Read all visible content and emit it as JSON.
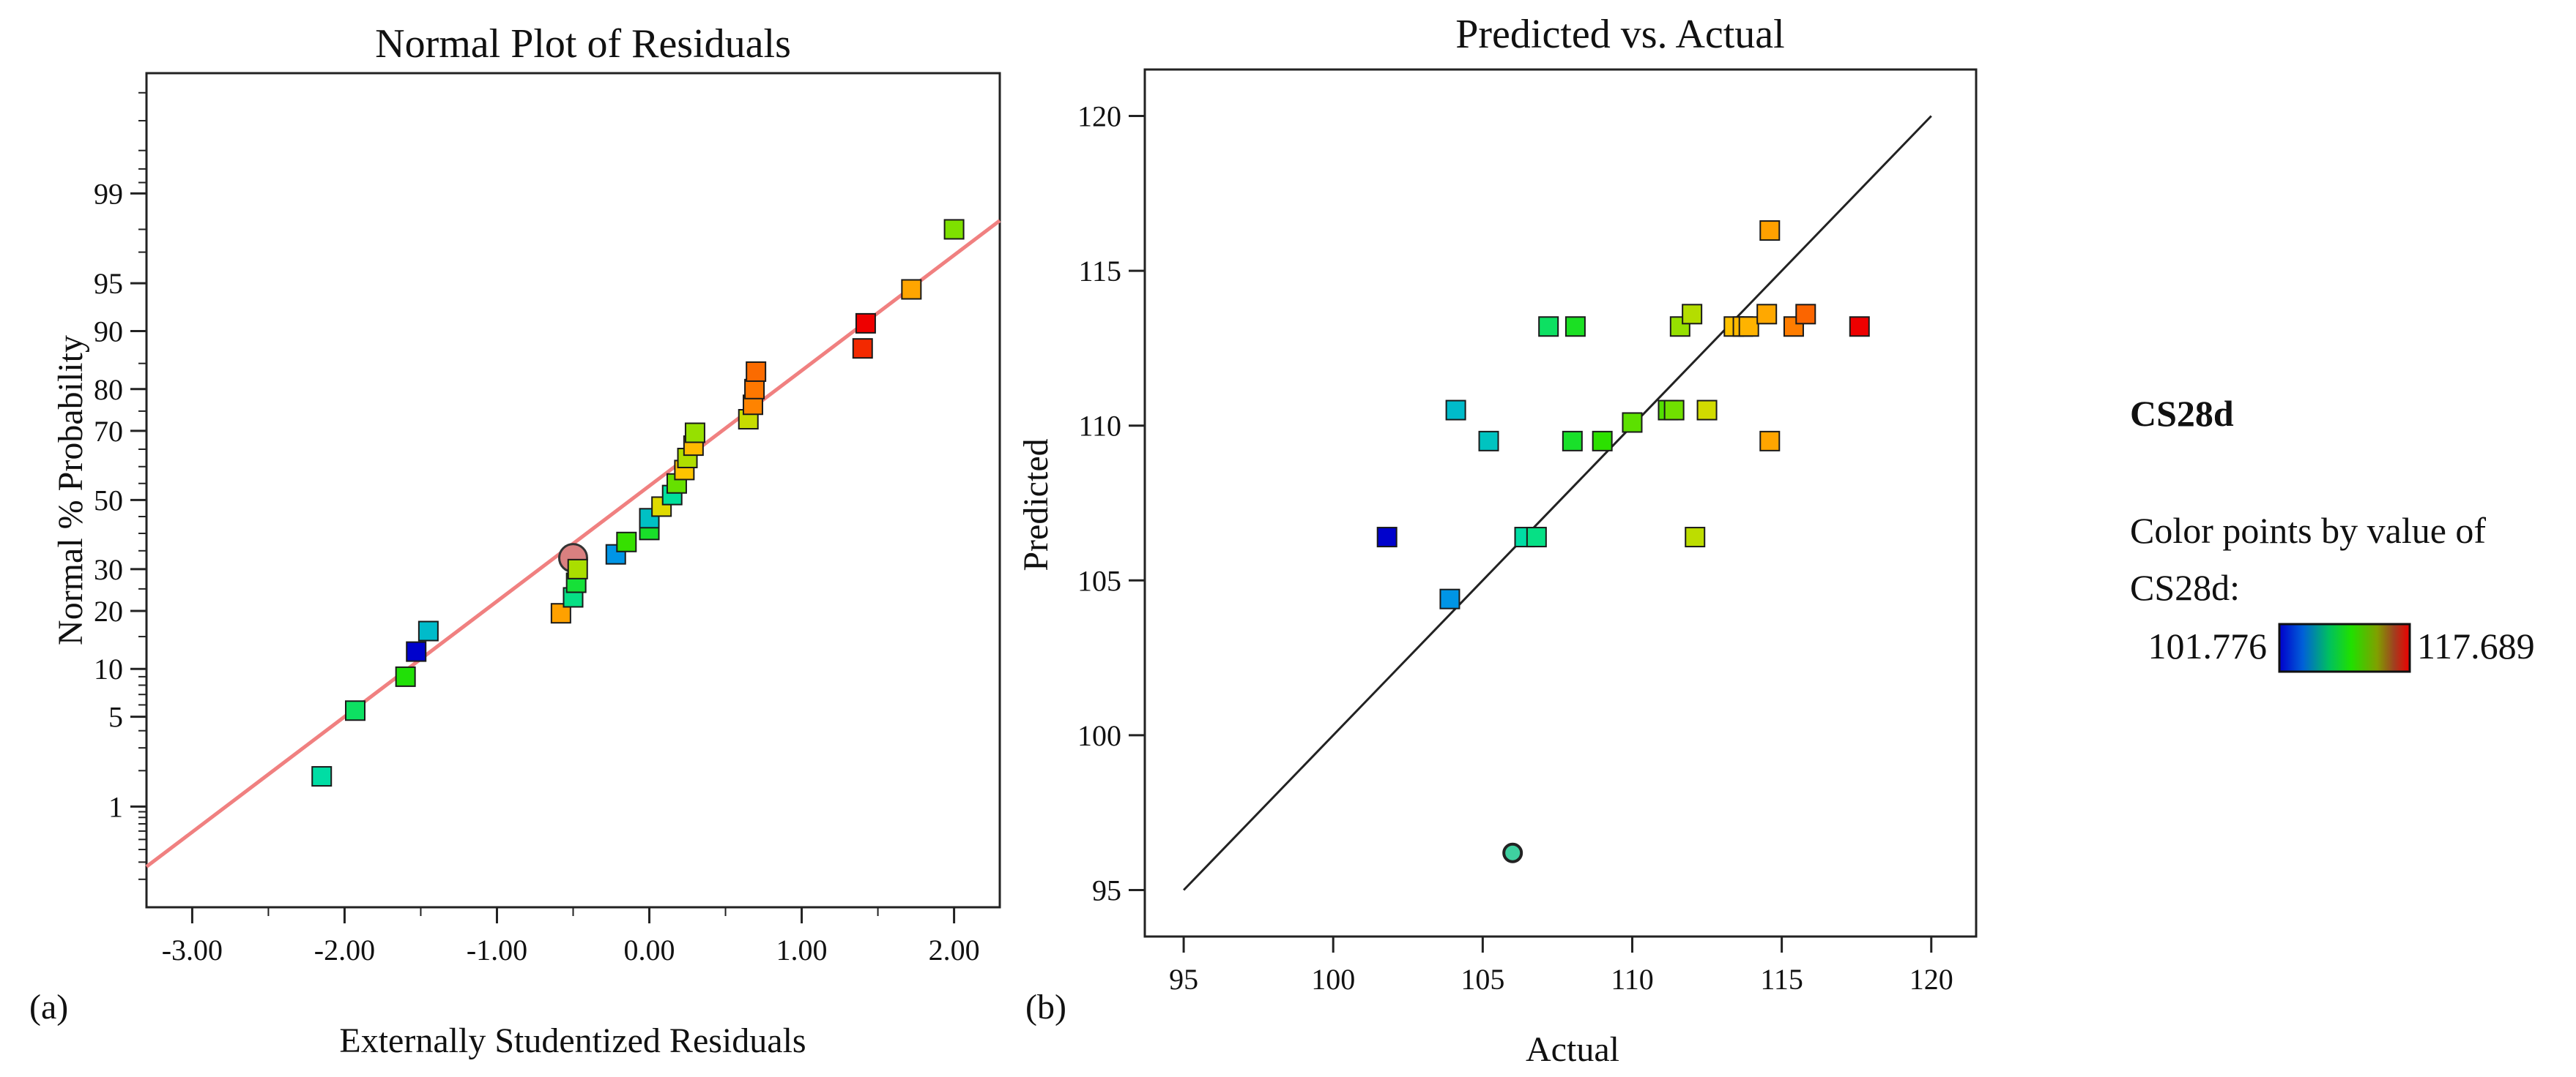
{
  "chart_data": [
    {
      "id": "a",
      "type": "scatter",
      "panel_label": "(a)",
      "title": "Normal Plot of Residuals",
      "xlabel": "Externally Studentized Residuals",
      "ylabel": "Normal % Probability",
      "xlim": [
        -3.3,
        2.3
      ],
      "x_ticks": [
        "-3.00",
        "-2.00",
        "-1.00",
        "0.00",
        "1.00",
        "2.00"
      ],
      "y_scale": "normal-probability",
      "y_ticks": [
        "1",
        "5",
        "10",
        "20",
        "30",
        "50",
        "70",
        "80",
        "90",
        "95",
        "99"
      ],
      "reference_line": {
        "color": "#f08080",
        "from": {
          "x": -3.3,
          "p": 0.27
        },
        "to": {
          "x": 2.3,
          "p": 98.3
        }
      },
      "highlighted_point": {
        "x": -0.5,
        "p": 33
      },
      "points": [
        {
          "x": -2.15,
          "p": 1.8,
          "c": 106.2
        },
        {
          "x": -1.93,
          "p": 5.5,
          "c": 107.2
        },
        {
          "x": -1.6,
          "p": 9,
          "c": 108.5
        },
        {
          "x": -1.53,
          "p": 12.5,
          "c": 101.8
        },
        {
          "x": -1.45,
          "p": 16,
          "c": 105.0
        },
        {
          "x": -0.58,
          "p": 19.5,
          "c": 114.7
        },
        {
          "x": -0.5,
          "p": 23,
          "c": 106.7
        },
        {
          "x": -0.48,
          "p": 26.5,
          "c": 107.8
        },
        {
          "x": -0.47,
          "p": 30,
          "c": 111.4
        },
        {
          "x": -0.22,
          "p": 34,
          "c": 103.9
        },
        {
          "x": -0.15,
          "p": 37.5,
          "c": 109.0
        },
        {
          "x": 0.0,
          "p": 41,
          "c": 108.0
        },
        {
          "x": 0.0,
          "p": 44.5,
          "c": 105.2
        },
        {
          "x": 0.08,
          "p": 48,
          "c": 112.5
        },
        {
          "x": 0.15,
          "p": 51.5,
          "c": 106.4
        },
        {
          "x": 0.18,
          "p": 55,
          "c": 110.0
        },
        {
          "x": 0.23,
          "p": 59,
          "c": 113.7
        },
        {
          "x": 0.25,
          "p": 62.5,
          "c": 111.5
        },
        {
          "x": 0.29,
          "p": 66,
          "c": 114.0
        },
        {
          "x": 0.3,
          "p": 69.5,
          "c": 111.0
        },
        {
          "x": 0.65,
          "p": 73,
          "c": 112.0
        },
        {
          "x": 0.68,
          "p": 76.5,
          "c": 115.5
        },
        {
          "x": 0.69,
          "p": 80,
          "c": 115.7
        },
        {
          "x": 0.7,
          "p": 83.5,
          "c": 115.9
        },
        {
          "x": 1.4,
          "p": 87.5,
          "c": 117.0
        },
        {
          "x": 1.42,
          "p": 91,
          "c": 117.7
        },
        {
          "x": 1.72,
          "p": 94.5,
          "c": 114.6
        },
        {
          "x": 2.0,
          "p": 98,
          "c": 110.5
        }
      ]
    },
    {
      "id": "b",
      "type": "scatter",
      "panel_label": "(b)",
      "title": "Predicted vs. Actual",
      "xlabel": "Actual",
      "ylabel": "Predicted",
      "xlim": [
        93.7,
        121.5
      ],
      "ylim": [
        93.5,
        121.5
      ],
      "x_ticks": [
        95,
        100,
        105,
        110,
        115,
        120
      ],
      "y_ticks": [
        95,
        100,
        105,
        110,
        115,
        120
      ],
      "reference_line": {
        "color": "#222222",
        "from": [
          95,
          95
        ],
        "to": [
          120,
          120
        ]
      },
      "outlier_point": {
        "x": 106.0,
        "y": 96.2
      },
      "points": [
        {
          "x": 101.8,
          "y": 106.4,
          "c": 101.8
        },
        {
          "x": 103.9,
          "y": 104.4,
          "c": 103.9
        },
        {
          "x": 104.1,
          "y": 110.5,
          "c": 105.0
        },
        {
          "x": 105.2,
          "y": 109.5,
          "c": 105.3
        },
        {
          "x": 106.4,
          "y": 106.4,
          "c": 106.2
        },
        {
          "x": 106.8,
          "y": 106.4,
          "c": 106.7
        },
        {
          "x": 107.2,
          "y": 113.2,
          "c": 107.2
        },
        {
          "x": 108.0,
          "y": 109.5,
          "c": 108.0
        },
        {
          "x": 108.1,
          "y": 113.2,
          "c": 108.1
        },
        {
          "x": 109.0,
          "y": 109.5,
          "c": 108.8
        },
        {
          "x": 110.0,
          "y": 110.1,
          "c": 109.8
        },
        {
          "x": 111.2,
          "y": 110.5,
          "c": 109.6
        },
        {
          "x": 111.4,
          "y": 110.5,
          "c": 110.2
        },
        {
          "x": 111.6,
          "y": 113.2,
          "c": 111.0
        },
        {
          "x": 112.0,
          "y": 113.6,
          "c": 111.6
        },
        {
          "x": 112.1,
          "y": 106.4,
          "c": 111.8
        },
        {
          "x": 112.5,
          "y": 110.5,
          "c": 112.2
        },
        {
          "x": 113.4,
          "y": 113.2,
          "c": 113.8
        },
        {
          "x": 113.7,
          "y": 113.2,
          "c": 114.0
        },
        {
          "x": 113.9,
          "y": 113.2,
          "c": 114.2
        },
        {
          "x": 114.5,
          "y": 113.6,
          "c": 114.5
        },
        {
          "x": 114.6,
          "y": 116.3,
          "c": 114.7
        },
        {
          "x": 114.6,
          "y": 109.5,
          "c": 114.6
        },
        {
          "x": 115.4,
          "y": 113.2,
          "c": 115.6
        },
        {
          "x": 115.8,
          "y": 113.6,
          "c": 116.0
        },
        {
          "x": 117.6,
          "y": 113.2,
          "c": 117.7
        }
      ]
    }
  ],
  "legend": {
    "title": "CS28d",
    "caption_line1": "Color points by value of",
    "caption_line2": "CS28d:",
    "min_label": "101.776",
    "max_label": "117.689",
    "min_value": 101.776,
    "max_value": 117.689,
    "min_label_color": "#1a1aff",
    "max_label_color": "#e8141e"
  },
  "colors": {
    "scale_stops": [
      "#0000cc",
      "#00a0e8",
      "#00e0a0",
      "#22e000",
      "#90e000",
      "#ffd800",
      "#ff8800",
      "#ee0000"
    ],
    "highlight_fill": "#d98080",
    "outlier_fill": "#3fd0a0"
  }
}
